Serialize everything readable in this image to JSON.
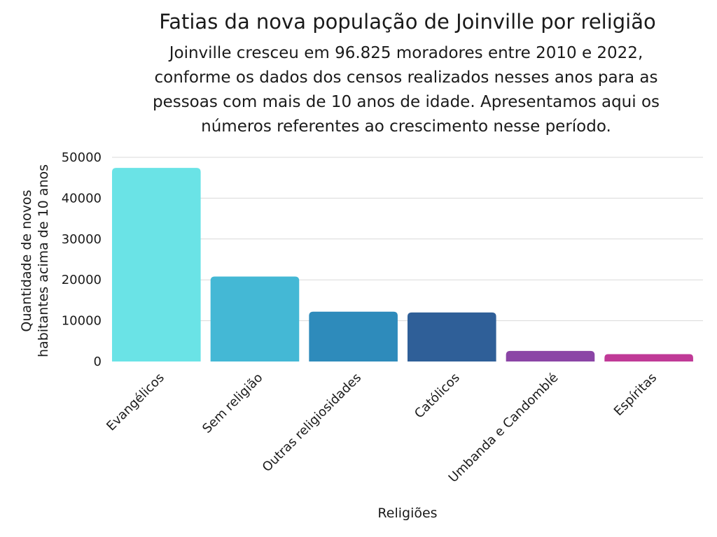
{
  "chart_data": {
    "type": "bar",
    "title": "Fatias da nova população de Joinville por religião",
    "subtitle_lines": [
      "Joinville cresceu em 96.825 moradores entre 2010 e 2022,",
      "conforme os dados dos censos realizados nesses anos para as",
      "pessoas com mais de 10 anos de idade. Apresentamos aqui os",
      "números referentes ao crescimento nesse período."
    ],
    "xlabel": "Religiões",
    "ylabel_lines": [
      "Quantidade de novos",
      "habitantes acima de 10 anos"
    ],
    "categories": [
      "Evangélicos",
      "Sem religião",
      "Outras religiosidades",
      "Católicos",
      "Umbanda e Candomblé",
      "Espíritas"
    ],
    "values": [
      47400,
      20800,
      12200,
      12000,
      2600,
      1800
    ],
    "colors": [
      "#6ae3e6",
      "#44b8d5",
      "#2e8bbb",
      "#2f5f98",
      "#8b45a6",
      "#c03a97"
    ],
    "yticks": [
      0,
      10000,
      20000,
      30000,
      40000,
      50000
    ],
    "ylim": [
      0,
      50000
    ],
    "grid": true,
    "legend": "none"
  }
}
